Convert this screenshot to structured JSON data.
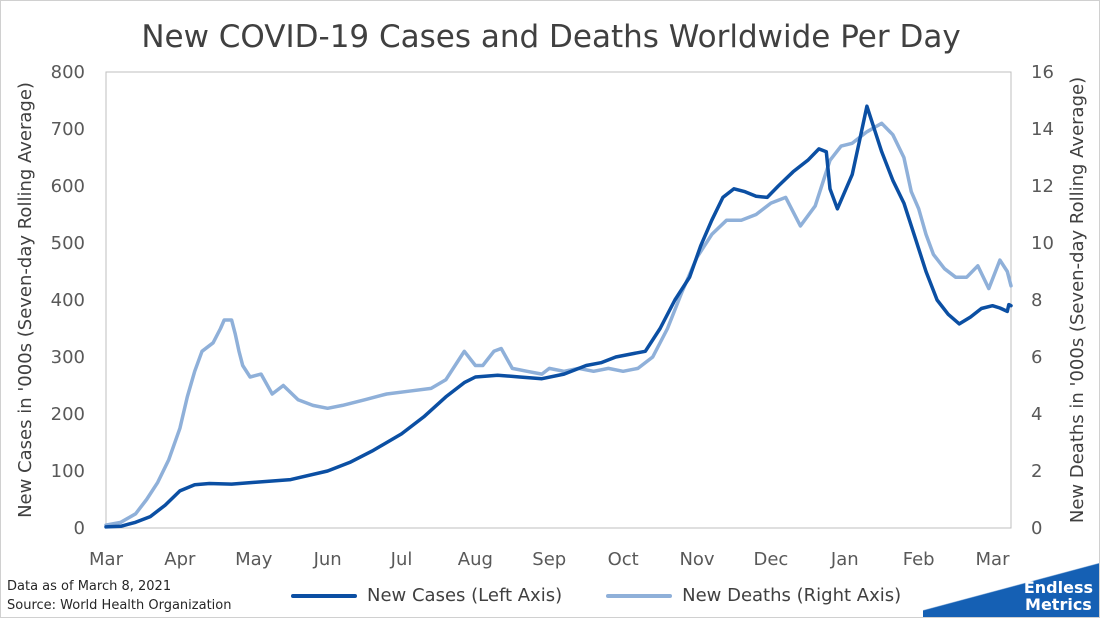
{
  "title": "New COVID-19 Cases and Deaths Worldwide Per Day",
  "footnote": {
    "line1": "Data as of March 8, 2021",
    "line2": "Source: World Health Organization"
  },
  "brand": {
    "line1": "Endless",
    "line2": "Metrics"
  },
  "colors": {
    "cases": "#0b4fa3",
    "deaths": "#8fb0d9",
    "axis": "#bfbfbf",
    "brand": "#1560b4"
  },
  "legend": [
    {
      "label": "New Cases (Left Axis)",
      "series": "cases"
    },
    {
      "label": "New Deaths (Right Axis)",
      "series": "deaths"
    }
  ],
  "chart_data": {
    "type": "line",
    "title": "New COVID-19 Cases and Deaths Worldwide Per Day",
    "ylabel": "New Cases in '000s (Seven-day Rolling Average)",
    "y2label": "New Deaths in '000s (Seven-day Rolling Average)",
    "ylim": [
      0,
      800
    ],
    "y2lim": [
      0,
      16
    ],
    "yticks": [
      "0",
      "100",
      "200",
      "300",
      "400",
      "500",
      "600",
      "700",
      "800"
    ],
    "y2ticks": [
      "0",
      "2",
      "4",
      "6",
      "8",
      "10",
      "12",
      "14",
      "16"
    ],
    "xticks": [
      "Mar",
      "Apr",
      "May",
      "Jun",
      "Jul",
      "Aug",
      "Sep",
      "Oct",
      "Nov",
      "Dec",
      "Jan",
      "Feb",
      "Mar"
    ],
    "xlim": [
      0,
      12.25
    ],
    "grid": false,
    "legend_position": "bottom",
    "series": [
      {
        "name": "New Cases (Left Axis)",
        "axis": "left",
        "x": [
          0,
          0.2,
          0.4,
          0.6,
          0.8,
          1.0,
          1.2,
          1.4,
          1.7,
          2.0,
          2.5,
          3.0,
          3.3,
          3.6,
          4.0,
          4.3,
          4.6,
          4.85,
          5.0,
          5.3,
          5.6,
          5.9,
          6.2,
          6.5,
          6.7,
          6.9,
          7.1,
          7.3,
          7.5,
          7.7,
          7.9,
          8.05,
          8.2,
          8.35,
          8.5,
          8.65,
          8.8,
          8.95,
          9.1,
          9.3,
          9.5,
          9.65,
          9.75,
          9.8,
          9.9,
          10.0,
          10.1,
          10.2,
          10.3,
          10.4,
          10.5,
          10.65,
          10.8,
          10.95,
          11.1,
          11.25,
          11.4,
          11.55,
          11.7,
          11.85,
          12.0,
          12.1,
          12.2,
          12.22,
          12.25
        ],
        "values": [
          2,
          3,
          10,
          20,
          40,
          65,
          76,
          78,
          77,
          80,
          85,
          100,
          115,
          135,
          165,
          195,
          230,
          255,
          265,
          268,
          265,
          262,
          270,
          285,
          290,
          300,
          305,
          310,
          350,
          400,
          440,
          495,
          540,
          580,
          595,
          590,
          582,
          580,
          600,
          625,
          645,
          665,
          660,
          595,
          560,
          590,
          620,
          680,
          740,
          700,
          660,
          610,
          570,
          510,
          450,
          400,
          375,
          358,
          370,
          385,
          390,
          386,
          380,
          392,
          390
        ]
      },
      {
        "name": "New Deaths (Right Axis)",
        "axis": "right",
        "x": [
          0,
          0.2,
          0.4,
          0.55,
          0.7,
          0.85,
          1.0,
          1.1,
          1.2,
          1.3,
          1.45,
          1.55,
          1.6,
          1.7,
          1.75,
          1.8,
          1.85,
          1.95,
          2.1,
          2.25,
          2.4,
          2.6,
          2.8,
          3.0,
          3.2,
          3.5,
          3.8,
          4.1,
          4.4,
          4.6,
          4.8,
          4.85,
          5.0,
          5.1,
          5.25,
          5.35,
          5.5,
          5.7,
          5.9,
          6.0,
          6.2,
          6.4,
          6.6,
          6.8,
          7.0,
          7.2,
          7.4,
          7.6,
          7.8,
          8.0,
          8.2,
          8.4,
          8.6,
          8.8,
          9.0,
          9.2,
          9.4,
          9.6,
          9.8,
          9.95,
          10.1,
          10.3,
          10.5,
          10.65,
          10.8,
          10.9,
          11.0,
          11.1,
          11.2,
          11.35,
          11.5,
          11.65,
          11.8,
          11.95,
          12.1,
          12.2,
          12.25
        ],
        "values": [
          0.1,
          0.2,
          0.5,
          1.0,
          1.6,
          2.4,
          3.5,
          4.6,
          5.5,
          6.2,
          6.5,
          7.0,
          7.3,
          7.3,
          6.8,
          6.2,
          5.7,
          5.3,
          5.4,
          4.7,
          5.0,
          4.5,
          4.3,
          4.2,
          4.3,
          4.5,
          4.7,
          4.8,
          4.9,
          5.2,
          6.0,
          6.2,
          5.7,
          5.7,
          6.2,
          6.3,
          5.6,
          5.5,
          5.4,
          5.6,
          5.5,
          5.6,
          5.5,
          5.6,
          5.5,
          5.6,
          6.0,
          7.0,
          8.3,
          9.5,
          10.3,
          10.8,
          10.8,
          11.0,
          11.4,
          11.6,
          10.6,
          11.3,
          12.9,
          13.4,
          13.5,
          13.9,
          14.2,
          13.8,
          13.0,
          11.8,
          11.2,
          10.3,
          9.6,
          9.1,
          8.8,
          8.8,
          9.2,
          8.4,
          9.4,
          9.0,
          8.5
        ]
      }
    ]
  }
}
